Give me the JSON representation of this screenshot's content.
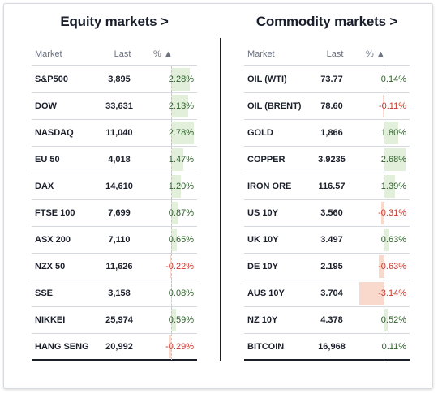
{
  "colors": {
    "positive_bar": "#e1efdb",
    "negative_bar": "#fad9cd",
    "negative_text": "#c8372d",
    "text": "#1a1f2b"
  },
  "equity": {
    "title": "Equity markets >",
    "headers": {
      "market": "Market",
      "last": "Last",
      "pct": "% ▲"
    },
    "rows": [
      {
        "market": "S&P500",
        "last": "3,895",
        "pct": "2.28%",
        "value": 2.28
      },
      {
        "market": "DOW",
        "last": "33,631",
        "pct": "2.13%",
        "value": 2.13
      },
      {
        "market": "NASDAQ",
        "last": "11,040",
        "pct": "2.78%",
        "value": 2.78
      },
      {
        "market": "EU 50",
        "last": "4,018",
        "pct": "1.47%",
        "value": 1.47
      },
      {
        "market": "DAX",
        "last": "14,610",
        "pct": "1.20%",
        "value": 1.2
      },
      {
        "market": "FTSE 100",
        "last": "7,699",
        "pct": "0.87%",
        "value": 0.87
      },
      {
        "market": "ASX 200",
        "last": "7,110",
        "pct": "0.65%",
        "value": 0.65
      },
      {
        "market": "NZX 50",
        "last": "11,626",
        "pct": "-0.22%",
        "value": -0.22
      },
      {
        "market": "SSE",
        "last": "3,158",
        "pct": "0.08%",
        "value": 0.08
      },
      {
        "market": "NIKKEI",
        "last": "25,974",
        "pct": "0.59%",
        "value": 0.59
      },
      {
        "market": "HANG SENG",
        "last": "20,992",
        "pct": "-0.29%",
        "value": -0.29
      }
    ]
  },
  "commodity": {
    "title": "Commodity markets >",
    "headers": {
      "market": "Market",
      "last": "Last",
      "pct": "% ▲"
    },
    "rows": [
      {
        "market": "OIL (WTI)",
        "last": "73.77",
        "pct": "0.14%",
        "value": 0.14
      },
      {
        "market": "OIL (BRENT)",
        "last": "78.60",
        "pct": "-0.11%",
        "value": -0.11
      },
      {
        "market": "GOLD",
        "last": "1,866",
        "pct": "1.80%",
        "value": 1.8
      },
      {
        "market": "COPPER",
        "last": "3.9235",
        "pct": "2.68%",
        "value": 2.68
      },
      {
        "market": "IRON ORE",
        "last": "116.57",
        "pct": "1.39%",
        "value": 1.39
      },
      {
        "market": "US 10Y",
        "last": "3.560",
        "pct": "-0.31%",
        "value": -0.31
      },
      {
        "market": "UK 10Y",
        "last": "3.497",
        "pct": "0.63%",
        "value": 0.63
      },
      {
        "market": "DE 10Y",
        "last": "2.195",
        "pct": "-0.63%",
        "value": -0.63
      },
      {
        "market": "AUS 10Y",
        "last": "3.704",
        "pct": "-3.14%",
        "value": -3.14
      },
      {
        "market": "NZ 10Y",
        "last": "4.378",
        "pct": "0.52%",
        "value": 0.52
      },
      {
        "market": "BITCOIN",
        "last": "16,968",
        "pct": "0.11%",
        "value": 0.11
      }
    ]
  }
}
